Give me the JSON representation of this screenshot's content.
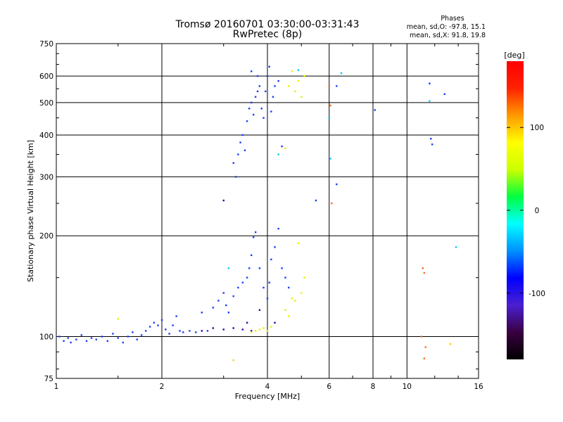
{
  "chart_data": {
    "type": "scatter",
    "title": "Tromsø 20160701 03:30:00-03:31:43",
    "subtitle": "RwPretec (8p)",
    "xlabel": "Frequency [MHz]",
    "ylabel": "Stationary phase Virtual Height [km]",
    "x_scale": "log",
    "y_scale": "log",
    "xlim": [
      1,
      16
    ],
    "ylim": [
      75,
      750
    ],
    "x_ticks": [
      1,
      2,
      4,
      6,
      8,
      10,
      16
    ],
    "y_ticks": [
      75,
      100,
      200,
      300,
      400,
      500,
      600,
      750
    ],
    "grid": true,
    "phase_info": {
      "title": "Phases",
      "o_line": "mean, sd,O: -97.8, 15.1",
      "x_line": "mean, sd,X:  91.8, 19.8"
    },
    "colorbar": {
      "label": "[deg]",
      "range": [
        -180,
        180
      ],
      "ticks": [
        100,
        0,
        -100
      ],
      "tick_labels": [
        "100",
        "0",
        "-100"
      ],
      "colors": [
        "#000000",
        "#3a0040",
        "#4a1fd0",
        "#0000ff",
        "#0090ff",
        "#00ffff",
        "#00ff40",
        "#ccff00",
        "#ffff00",
        "#ff9900",
        "#ff2200",
        "#ff0000"
      ]
    },
    "series": [
      {
        "phase": -100,
        "color": "#1a3cff",
        "points": [
          [
            1.02,
            100
          ],
          [
            1.05,
            97
          ],
          [
            1.08,
            99
          ],
          [
            1.1,
            96
          ],
          [
            1.14,
            98
          ],
          [
            1.18,
            101
          ],
          [
            1.22,
            97
          ],
          [
            1.26,
            99
          ],
          [
            1.3,
            98
          ],
          [
            1.35,
            100
          ],
          [
            1.4,
            97
          ],
          [
            1.45,
            102
          ],
          [
            1.5,
            99
          ],
          [
            1.55,
            96
          ],
          [
            1.6,
            100
          ],
          [
            1.65,
            103
          ],
          [
            1.7,
            98
          ],
          [
            1.75,
            101
          ],
          [
            1.8,
            104
          ],
          [
            1.85,
            107
          ],
          [
            1.9,
            110
          ],
          [
            1.95,
            108
          ],
          [
            2.0,
            112
          ],
          [
            2.05,
            105
          ],
          [
            2.1,
            102
          ],
          [
            2.15,
            108
          ],
          [
            2.2,
            115
          ],
          [
            2.25,
            104
          ],
          [
            2.3,
            103
          ],
          [
            2.4,
            104
          ],
          [
            2.5,
            103
          ],
          [
            2.6,
            118
          ],
          [
            2.7,
            104
          ],
          [
            2.8,
            122
          ],
          [
            2.9,
            128
          ],
          [
            3.0,
            135
          ],
          [
            3.05,
            124
          ],
          [
            3.1,
            118
          ],
          [
            3.2,
            132
          ],
          [
            3.3,
            140
          ],
          [
            3.4,
            145
          ],
          [
            3.5,
            150
          ],
          [
            3.55,
            160
          ],
          [
            3.6,
            175
          ],
          [
            3.65,
            198
          ],
          [
            3.7,
            205
          ],
          [
            3.8,
            160
          ],
          [
            3.9,
            140
          ],
          [
            4.0,
            130
          ],
          [
            4.05,
            145
          ],
          [
            4.1,
            170
          ],
          [
            4.2,
            185
          ],
          [
            4.3,
            210
          ],
          [
            4.4,
            160
          ],
          [
            4.5,
            150
          ],
          [
            4.6,
            140
          ],
          [
            3.2,
            330
          ],
          [
            3.25,
            300
          ],
          [
            3.3,
            350
          ],
          [
            3.35,
            380
          ],
          [
            3.4,
            400
          ],
          [
            3.45,
            360
          ],
          [
            3.5,
            440
          ],
          [
            3.55,
            480
          ],
          [
            3.6,
            500
          ],
          [
            3.65,
            460
          ],
          [
            3.7,
            520
          ],
          [
            3.75,
            600
          ],
          [
            3.8,
            560
          ],
          [
            3.85,
            480
          ],
          [
            3.9,
            450
          ],
          [
            3.95,
            540
          ],
          [
            4.0,
            600
          ],
          [
            4.05,
            640
          ],
          [
            4.1,
            470
          ],
          [
            4.15,
            520
          ],
          [
            4.2,
            560
          ],
          [
            4.3,
            580
          ],
          [
            3.6,
            620
          ],
          [
            3.75,
            540
          ],
          [
            4.4,
            370
          ],
          [
            6.3,
            560
          ],
          [
            8.1,
            475
          ],
          [
            11.6,
            570
          ],
          [
            11.7,
            390
          ],
          [
            11.8,
            375
          ],
          [
            12.8,
            530
          ],
          [
            5.5,
            255
          ],
          [
            6.3,
            285
          ]
        ]
      },
      {
        "phase": -120,
        "color": "#3500b0",
        "points": [
          [
            2.6,
            104
          ],
          [
            2.8,
            106
          ],
          [
            3.0,
            105
          ],
          [
            3.2,
            106
          ],
          [
            3.4,
            105
          ],
          [
            3.6,
            104
          ],
          [
            3.0,
            255
          ],
          [
            3.5,
            110
          ],
          [
            3.8,
            120
          ],
          [
            4.2,
            110
          ]
        ]
      },
      {
        "phase": 100,
        "color": "#e8f000",
        "points": [
          [
            3.6,
            103
          ],
          [
            3.7,
            104
          ],
          [
            3.8,
            105
          ],
          [
            3.9,
            106
          ],
          [
            4.0,
            104
          ],
          [
            4.1,
            107
          ],
          [
            4.5,
            120
          ],
          [
            4.6,
            115
          ],
          [
            4.7,
            130
          ],
          [
            4.8,
            128
          ],
          [
            5.0,
            135
          ],
          [
            5.1,
            150
          ],
          [
            4.9,
            190
          ],
          [
            4.6,
            560
          ],
          [
            4.7,
            620
          ],
          [
            4.8,
            540
          ],
          [
            4.9,
            580
          ],
          [
            5.0,
            520
          ],
          [
            5.1,
            600
          ],
          [
            4.5,
            365
          ],
          [
            1.5,
            113
          ]
        ]
      },
      {
        "phase": 110,
        "color": "#ffcc00",
        "points": [
          [
            3.2,
            85
          ],
          [
            13.3,
            95
          ]
        ]
      },
      {
        "phase": 150,
        "color": "#ff6a1a",
        "points": [
          [
            6.0,
            560
          ],
          [
            6.05,
            490
          ],
          [
            6.1,
            250
          ],
          [
            11.1,
            160
          ],
          [
            11.2,
            155
          ],
          [
            11.0,
            100
          ],
          [
            11.3,
            93
          ],
          [
            11.2,
            86
          ]
        ]
      },
      {
        "phase": 10,
        "color": "#00c8ff",
        "points": [
          [
            4.9,
            625
          ],
          [
            6.5,
            612
          ],
          [
            6.0,
            450
          ],
          [
            6.05,
            340
          ],
          [
            11.6,
            505
          ],
          [
            3.1,
            160
          ],
          [
            13.8,
            185
          ],
          [
            4.3,
            350
          ]
        ]
      }
    ]
  }
}
